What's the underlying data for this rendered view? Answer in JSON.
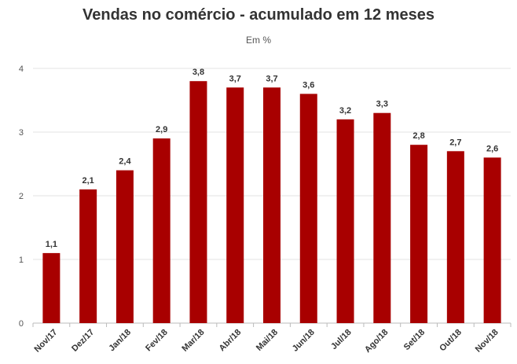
{
  "chart_data": {
    "type": "bar",
    "title": "Vendas no comércio - acumulado em 12 meses",
    "subtitle": "Em %",
    "categories": [
      "Nov/17",
      "Dez/17",
      "Jan/18",
      "Fev/18",
      "Mar/18",
      "Abr/18",
      "Mai/18",
      "Jun/18",
      "Jul/18",
      "Ago/18",
      "Set/18",
      "Out/18",
      "Nov/18"
    ],
    "values": [
      1.1,
      2.1,
      2.4,
      2.9,
      3.8,
      3.7,
      3.7,
      3.6,
      3.2,
      3.3,
      2.8,
      2.7,
      2.6
    ],
    "data_labels": [
      "1,1",
      "2,1",
      "2,4",
      "2,9",
      "3,8",
      "3,7",
      "3,7",
      "3,6",
      "3,2",
      "3,3",
      "2,8",
      "2,7",
      "2,6"
    ],
    "yticks": [
      0,
      1,
      2,
      3,
      4
    ],
    "ylim": [
      0,
      4
    ],
    "xlabel": "",
    "ylabel": "",
    "grid": true,
    "legend": "none",
    "bar_color": "#a80000"
  }
}
